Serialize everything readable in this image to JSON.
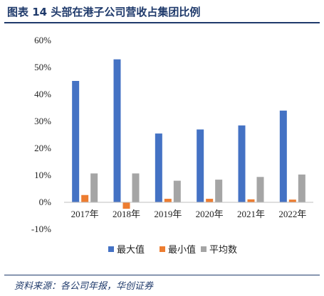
{
  "header": {
    "title": "图表 14 头部在港子公司营收占集团比例"
  },
  "footer": {
    "source": "资料来源：各公司年报，华创证券"
  },
  "colors": {
    "max": "#4472c4",
    "min": "#ed7d31",
    "avg": "#a5a5a5",
    "rule": "#1f3a6b"
  },
  "chart_data": {
    "type": "bar",
    "categories": [
      "2017年",
      "2018年",
      "2019年",
      "2020年",
      "2021年",
      "2022年"
    ],
    "series": [
      {
        "name": "最大值",
        "values": [
          45.0,
          53.0,
          25.5,
          27.0,
          28.5,
          34.0
        ]
      },
      {
        "name": "最小值",
        "values": [
          2.7,
          -2.4,
          1.3,
          1.3,
          1.1,
          1.0
        ]
      },
      {
        "name": "平均数",
        "values": [
          10.7,
          10.7,
          8.0,
          8.4,
          9.4,
          10.3
        ]
      }
    ],
    "ylim": [
      -10,
      60
    ],
    "yticks": [
      "60%",
      "50%",
      "40%",
      "30%",
      "20%",
      "10%",
      "0%",
      "-10%"
    ],
    "ytick_values": [
      60,
      50,
      40,
      30,
      20,
      10,
      0,
      -10
    ],
    "grid": false,
    "legend_position": "bottom"
  }
}
